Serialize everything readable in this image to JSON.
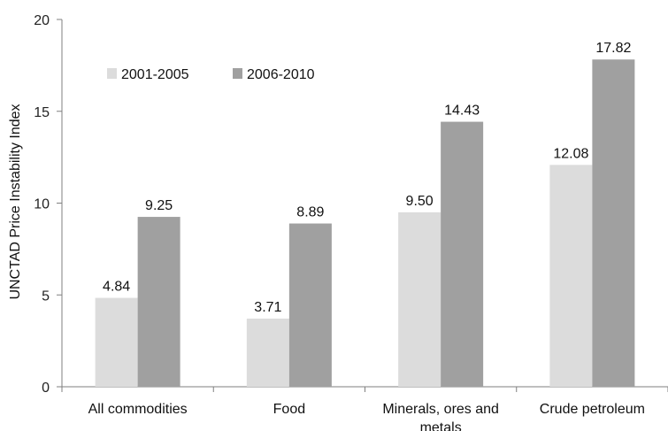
{
  "chart_data": {
    "type": "bar",
    "title": "",
    "xlabel": "",
    "ylabel": "UNCTAD Price Instability Index",
    "ylim": [
      0,
      20
    ],
    "yticks": [
      0,
      5,
      10,
      15,
      20
    ],
    "grid": false,
    "legend_position": "top-left",
    "categories": [
      [
        "All commodities"
      ],
      [
        "Food"
      ],
      [
        "Minerals, ores and",
        "metals"
      ],
      [
        "Crude petroleum"
      ]
    ],
    "series": [
      {
        "name": "2001-2005",
        "color": "#dcdcdc",
        "values": [
          4.84,
          3.71,
          9.5,
          12.08
        ],
        "labels": [
          "4.84",
          "3.71",
          "9.50",
          "12.08"
        ]
      },
      {
        "name": "2006-2010",
        "color": "#a0a0a0",
        "values": [
          9.25,
          8.89,
          14.43,
          17.82
        ],
        "labels": [
          "9.25",
          "8.89",
          "14.43",
          "17.82"
        ]
      }
    ]
  }
}
